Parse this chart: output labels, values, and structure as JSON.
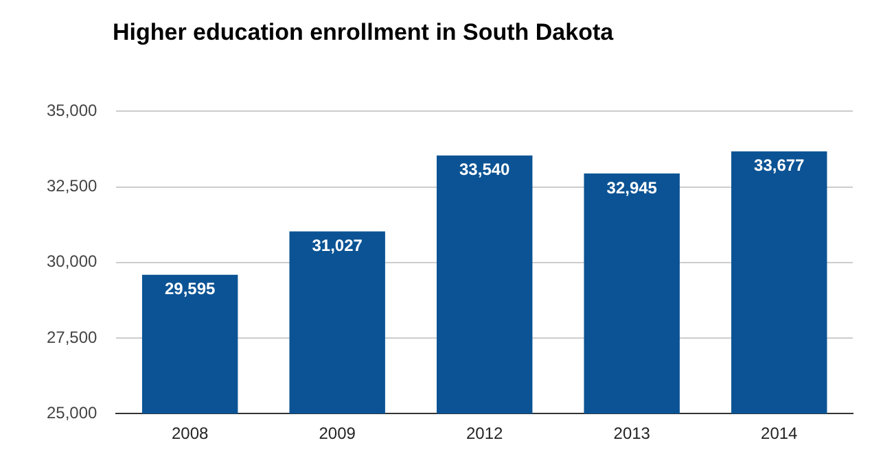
{
  "chart_data": {
    "type": "bar",
    "title": "Higher education enrollment in South Dakota",
    "categories": [
      "2008",
      "2009",
      "2012",
      "2013",
      "2014"
    ],
    "values": [
      29595,
      31027,
      33540,
      32945,
      33677
    ],
    "value_labels": [
      "29,595",
      "31,027",
      "33,540",
      "32,945",
      "33,677"
    ],
    "color": "#0b5394",
    "ylim": [
      25000,
      35000
    ],
    "yticks": [
      {
        "value": 25000,
        "label": "25,000"
      },
      {
        "value": 27500,
        "label": "27,500"
      },
      {
        "value": 30000,
        "label": "30,000"
      },
      {
        "value": 32500,
        "label": "32,500"
      },
      {
        "value": 35000,
        "label": "35,000"
      }
    ],
    "grid": "y",
    "legend": false
  }
}
